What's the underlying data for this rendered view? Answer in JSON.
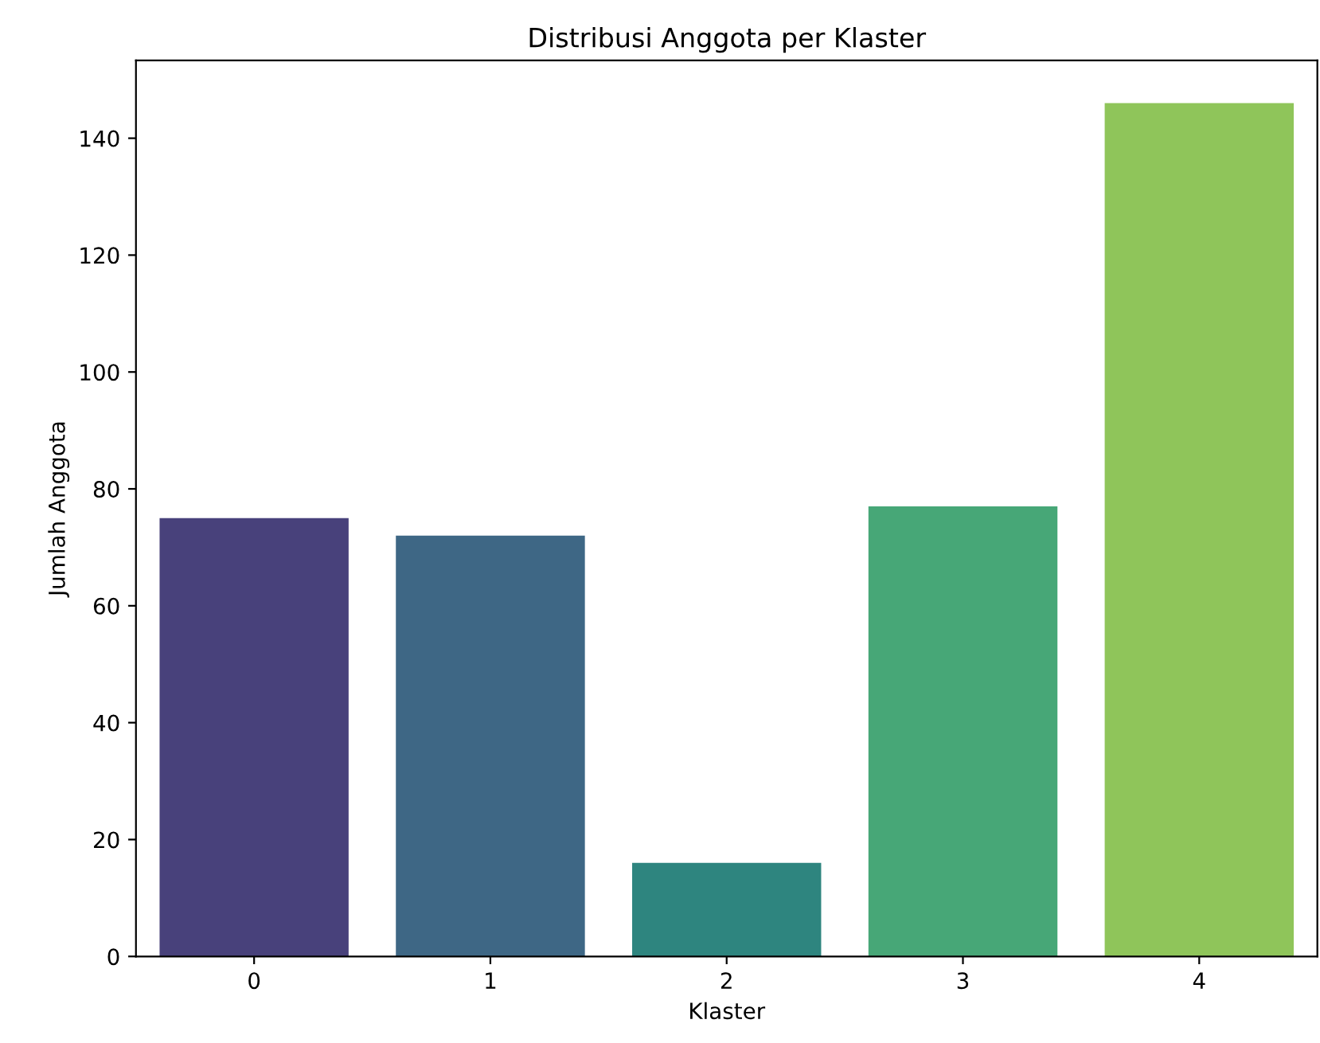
{
  "chart_data": {
    "type": "bar",
    "title": "Distribusi Anggota per Klaster",
    "xlabel": "Klaster",
    "ylabel": "Jumlah Anggota",
    "categories": [
      "0",
      "1",
      "2",
      "3",
      "4"
    ],
    "values": [
      75,
      72,
      16,
      77,
      146
    ],
    "colors": [
      "#48417b",
      "#3e6785",
      "#2e857f",
      "#47a777",
      "#8fc55a"
    ],
    "ylim": [
      0,
      153.3
    ],
    "yticks": [
      0,
      20,
      40,
      60,
      80,
      100,
      120,
      140
    ],
    "grid": false
  }
}
